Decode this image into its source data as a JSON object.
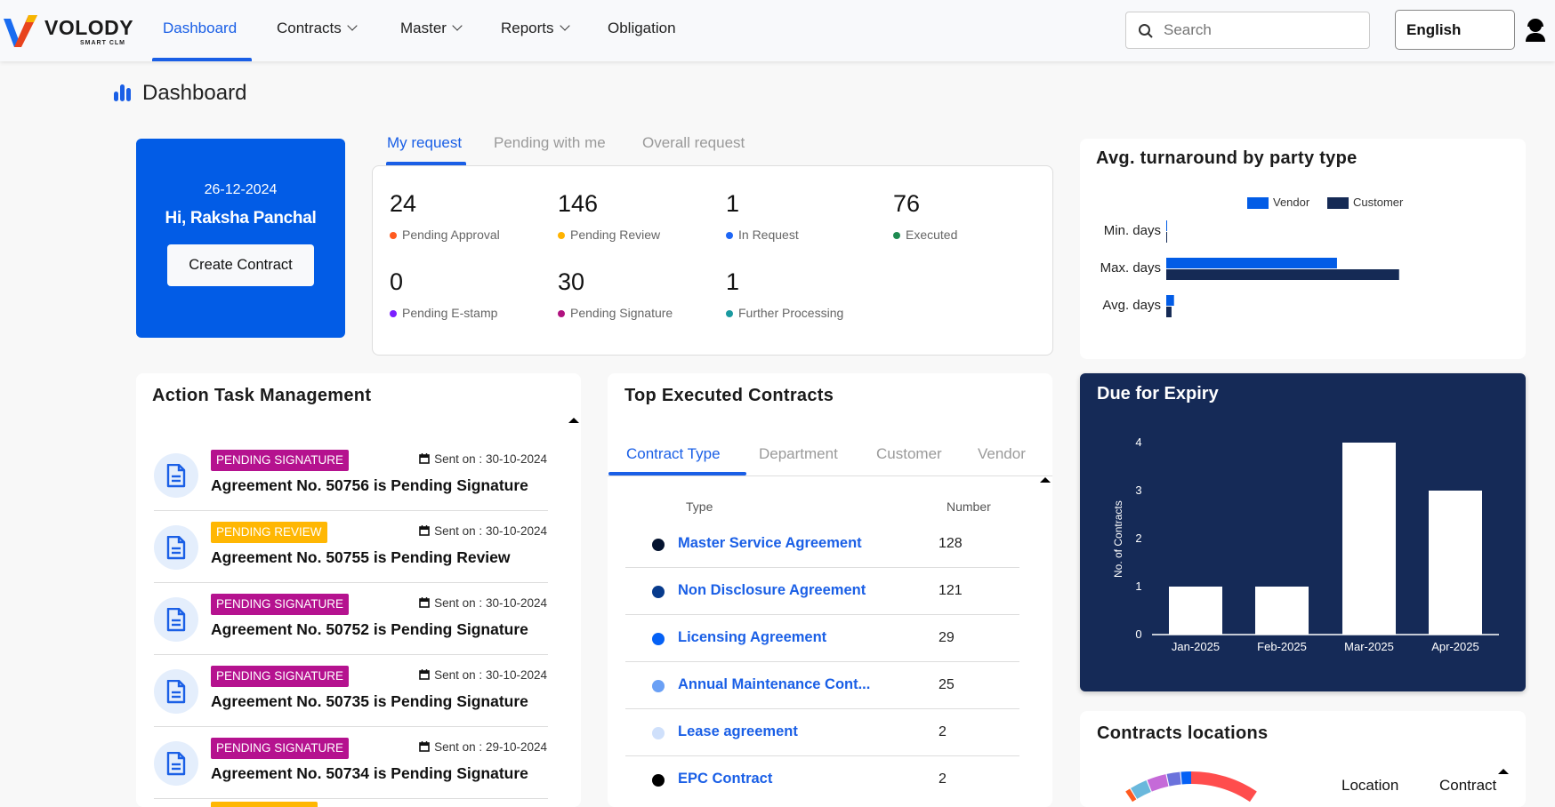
{
  "nav": {
    "logo_text": "VOLODY",
    "logo_sub": "SMART CLM",
    "items": [
      {
        "label": "Dashboard",
        "active": true,
        "dropdown": false
      },
      {
        "label": "Contracts",
        "dropdown": true
      },
      {
        "label": "Master",
        "dropdown": true
      },
      {
        "label": "Reports",
        "dropdown": true
      },
      {
        "label": "Obligation",
        "dropdown": false
      }
    ],
    "search_placeholder": "Search",
    "language": "English"
  },
  "page": {
    "title": "Dashboard",
    "accent": "#1a5fe6"
  },
  "welcome": {
    "date": "26-12-2024",
    "greeting": "Hi, Raksha Panchal",
    "create_button": "Create Contract",
    "bg": "#025ce6"
  },
  "request_tabs": [
    "My request",
    "Pending with me",
    "Overall request"
  ],
  "stats": [
    {
      "value": "24",
      "label": "Pending Approval",
      "color": "#ff5a1f"
    },
    {
      "value": "146",
      "label": "Pending Review",
      "color": "#ffb300"
    },
    {
      "value": "1",
      "label": "In Request",
      "color": "#1e66f5"
    },
    {
      "value": "76",
      "label": "Executed",
      "color": "#1e8a50"
    },
    {
      "value": "0",
      "label": "Pending E-stamp",
      "color": "#7b1fff"
    },
    {
      "value": "30",
      "label": "Pending Signature",
      "color": "#b0127f"
    },
    {
      "value": "1",
      "label": "Further Processing",
      "color": "#1a9aa0"
    }
  ],
  "tasks": {
    "title": "Action Task Management",
    "sent_prefix": "Sent on : ",
    "items": [
      {
        "badge": "PENDING SIGNATURE",
        "badge_color": "#b5128f",
        "date": "30-10-2024",
        "title": "Agreement No. 50756 is Pending Signature"
      },
      {
        "badge": "PENDING REVIEW",
        "badge_color": "#ffb703",
        "date": "30-10-2024",
        "title": "Agreement No. 50755 is Pending Review"
      },
      {
        "badge": "PENDING SIGNATURE",
        "badge_color": "#b5128f",
        "date": "30-10-2024",
        "title": "Agreement No. 50752 is Pending Signature"
      },
      {
        "badge": "PENDING SIGNATURE",
        "badge_color": "#b5128f",
        "date": "30-10-2024",
        "title": "Agreement No. 50735 is Pending Signature"
      },
      {
        "badge": "PENDING SIGNATURE",
        "badge_color": "#b5128f",
        "date": "29-10-2024",
        "title": "Agreement No. 50734 is Pending Signature"
      }
    ]
  },
  "top_executed": {
    "title": "Top Executed Contracts",
    "tabs": [
      "Contract Type",
      "Department",
      "Customer",
      "Vendor"
    ],
    "col_type": "Type",
    "col_number": "Number",
    "rows": [
      {
        "type": "Master Service Agreement",
        "number": "128",
        "color": "#04132f"
      },
      {
        "type": "Non Disclosure Agreement",
        "number": "121",
        "color": "#073a8c"
      },
      {
        "type": "Licensing Agreement",
        "number": "29",
        "color": "#0561f5"
      },
      {
        "type": "Annual Maintenance Cont...",
        "number": "25",
        "color": "#6aa0f5"
      },
      {
        "type": "Lease agreement",
        "number": "2",
        "color": "#cfe0fb"
      },
      {
        "type": "EPC Contract",
        "number": "2",
        "color": "#000000"
      }
    ]
  },
  "chart_data": [
    {
      "type": "bar",
      "orientation": "horizontal",
      "title": "Avg. turnaround by party type",
      "categories": [
        "Min. days",
        "Max. days",
        "Avg. days"
      ],
      "series": [
        {
          "name": "Vendor",
          "color": "#025ce6",
          "values": [
            0,
            55,
            2.5
          ]
        },
        {
          "name": "Customer",
          "color": "#152a55",
          "values": [
            0,
            75,
            1.7
          ]
        }
      ],
      "legend": "top",
      "grid": false
    },
    {
      "type": "bar",
      "title": "Due for Expiry",
      "categories": [
        "Jan-2025",
        "Feb-2025",
        "Mar-2025",
        "Apr-2025"
      ],
      "values": [
        1,
        1,
        4,
        3
      ],
      "ylabel": "No. of Contracts",
      "yticks": [
        "0",
        "1",
        "2",
        "3",
        "4"
      ],
      "ylim": [
        0,
        4
      ],
      "bg": "#152a57",
      "bar_color": "#ffffff"
    }
  ],
  "locations": {
    "title": "Contracts locations",
    "col_location": "Location",
    "col_contract": "Contract",
    "donut_colors": [
      "#ff4d4d",
      "#0561f5",
      "#6b72dc",
      "#c56ad8",
      "#6ab8dc",
      "#ff5a1f"
    ]
  }
}
